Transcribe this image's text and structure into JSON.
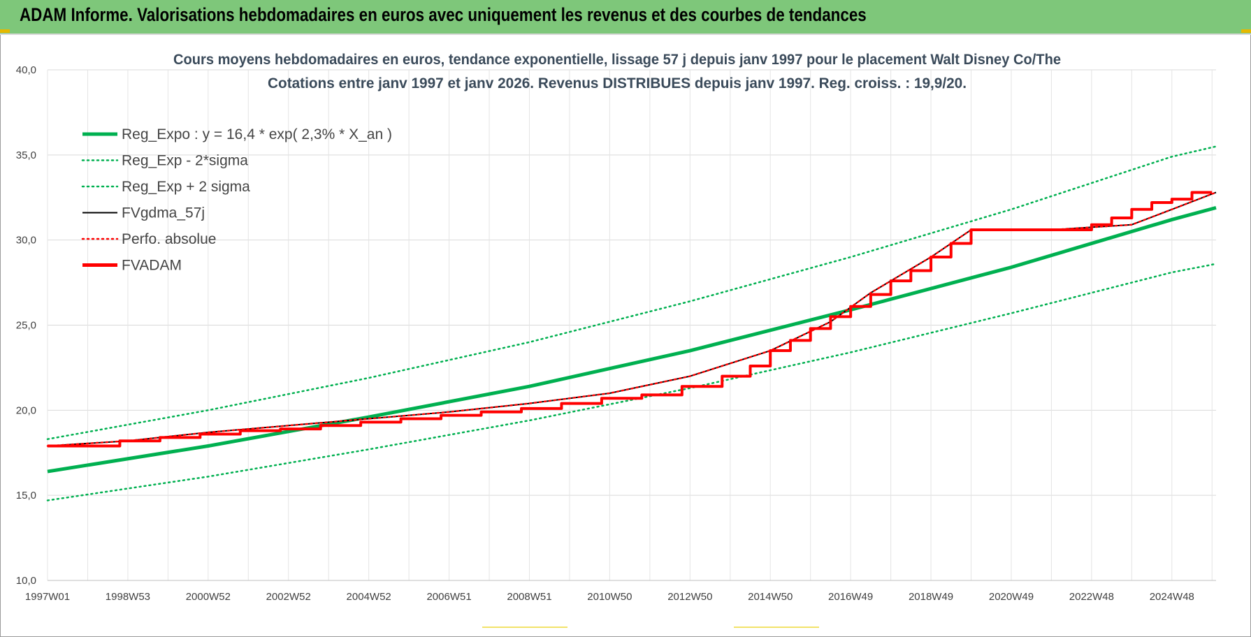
{
  "banner": {
    "title": "ADAM Informe. Valorisations hebdomadaires en euros avec uniquement les revenus et des courbes de tendances"
  },
  "chart_data": {
    "type": "line",
    "title_line1": "Cours moyens hebdomadaires en euros, tendance exponentielle, lissage 57 j depuis janv 1997 pour le placement Walt Disney Co/The",
    "title_line2": "Cotations entre janv 1997 et janv 2026. Revenus DISTRIBUES depuis janv 1997. Reg. croiss. : 19,9/20.",
    "ylim": [
      10,
      40
    ],
    "xlim": [
      1997.0,
      2026.1
    ],
    "y_ticks": [
      "10,0",
      "15,0",
      "20,0",
      "25,0",
      "30,0",
      "35,0",
      "40,0"
    ],
    "y_tick_values": [
      10,
      15,
      20,
      25,
      30,
      35,
      40
    ],
    "x_ticks": [
      "1997W01",
      "1998W53",
      "2000W52",
      "2002W52",
      "2004W52",
      "2006W51",
      "2008W51",
      "2010W50",
      "2012W50",
      "2014W50",
      "2016W49",
      "2018W49",
      "2020W49",
      "2022W48",
      "2024W48"
    ],
    "x_tick_values": [
      1997.0,
      1999.0,
      2001.0,
      2003.0,
      2005.0,
      2007.0,
      2009.0,
      2011.0,
      2013.0,
      2015.0,
      2017.0,
      2019.0,
      2021.0,
      2023.0,
      2025.0
    ],
    "grid": true,
    "legend_position": "top-left",
    "series": [
      {
        "name": "Reg_Expo : y = 16,4 * exp( 2,3% *  X_an )",
        "color": "#00b050",
        "style": "solid-thick",
        "x": [
          1997.0,
          2001.0,
          2005.0,
          2009.0,
          2013.0,
          2017.0,
          2021.0,
          2025.0,
          2026.1
        ],
        "y": [
          16.4,
          17.9,
          19.6,
          21.4,
          23.5,
          25.9,
          28.4,
          31.2,
          31.9
        ]
      },
      {
        "name": "Reg_Exp - 2*sigma",
        "color": "#00b050",
        "style": "dotted",
        "x": [
          1997.0,
          2001.0,
          2005.0,
          2009.0,
          2013.0,
          2017.0,
          2021.0,
          2025.0,
          2026.1
        ],
        "y": [
          14.7,
          16.1,
          17.7,
          19.4,
          21.3,
          23.4,
          25.7,
          28.1,
          28.6
        ]
      },
      {
        "name": "Reg_Exp + 2 sigma",
        "color": "#00b050",
        "style": "dotted",
        "x": [
          1997.0,
          2001.0,
          2005.0,
          2009.0,
          2013.0,
          2017.0,
          2021.0,
          2025.0,
          2026.1
        ],
        "y": [
          18.3,
          20.0,
          21.9,
          24.0,
          26.4,
          29.0,
          31.8,
          34.9,
          35.5
        ]
      },
      {
        "name": "FVgdma_57j",
        "color": "#000000",
        "style": "solid",
        "x": [
          1997.0,
          1999.0,
          2001.0,
          2003.0,
          2005.0,
          2007.0,
          2009.0,
          2011.0,
          2013.0,
          2015.0,
          2016.5,
          2017.5,
          2019.0,
          2020.0,
          2022.0,
          2024.0,
          2025.0,
          2026.1
        ],
        "y": [
          17.9,
          18.2,
          18.7,
          19.1,
          19.5,
          19.9,
          20.4,
          21.0,
          22.0,
          23.5,
          25.2,
          26.9,
          29.0,
          30.6,
          30.6,
          30.9,
          31.8,
          32.8
        ]
      },
      {
        "name": "Perfo. absolue",
        "color": "#ff0000",
        "style": "dotted",
        "x": [
          1997.0,
          1999.0,
          2001.0,
          2003.0,
          2005.0,
          2007.0,
          2009.0,
          2011.0,
          2013.0,
          2015.0,
          2016.5,
          2017.5,
          2019.0,
          2020.0,
          2022.0,
          2024.0,
          2025.0,
          2026.1
        ],
        "y": [
          17.9,
          18.2,
          18.7,
          19.1,
          19.5,
          19.9,
          20.4,
          21.0,
          22.0,
          23.5,
          25.2,
          26.9,
          29.0,
          30.6,
          30.6,
          30.9,
          31.8,
          32.8
        ]
      },
      {
        "name": "FVADAM",
        "color": "#ff0000",
        "style": "step-thick",
        "x": [
          1997.0,
          1998.8,
          1999.8,
          2000.8,
          2001.8,
          2002.8,
          2003.8,
          2004.8,
          2005.8,
          2006.8,
          2007.8,
          2008.8,
          2009.8,
          2010.8,
          2011.8,
          2012.8,
          2013.8,
          2014.5,
          2015.0,
          2015.5,
          2016.0,
          2016.5,
          2017.0,
          2017.5,
          2018.0,
          2018.5,
          2019.0,
          2019.5,
          2020.0,
          2023.0,
          2023.5,
          2024.0,
          2024.5,
          2025.0,
          2025.5,
          2026.0
        ],
        "y": [
          17.9,
          18.2,
          18.4,
          18.6,
          18.8,
          18.9,
          19.1,
          19.3,
          19.5,
          19.7,
          19.9,
          20.1,
          20.4,
          20.7,
          20.9,
          21.4,
          22.0,
          22.6,
          23.5,
          24.1,
          24.8,
          25.5,
          26.1,
          26.8,
          27.6,
          28.2,
          29.0,
          29.8,
          30.6,
          30.9,
          31.3,
          31.8,
          32.2,
          32.4,
          32.8,
          32.8
        ]
      }
    ]
  }
}
